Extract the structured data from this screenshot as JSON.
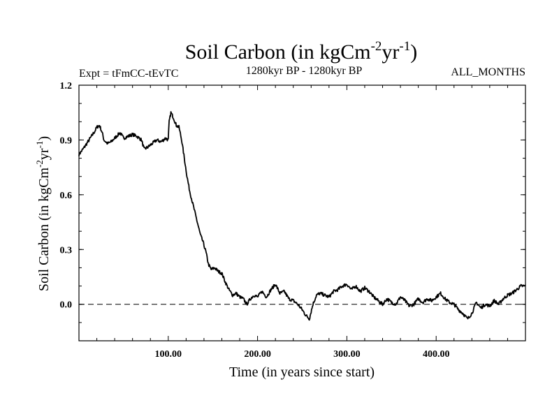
{
  "chart_data": {
    "type": "line",
    "title": {
      "main": "Soil Carbon (in kgCm",
      "sup1": "-2",
      "mid": "yr",
      "sup2": "-1",
      "end": ")"
    },
    "subtitle_left": "Expt = tFmCC-tEvTC",
    "subtitle_center": "1280kyr BP - 1280kyr BP",
    "subtitle_right": "ALL_MONTHS",
    "xlabel": "Time (in years since start)",
    "ylabel": {
      "main": "Soil Carbon (in kgCm",
      "sup1": "-2",
      "mid": "yr",
      "sup2": "-1",
      "end": ")"
    },
    "xlim": [
      0,
      500
    ],
    "ylim": [
      -0.2,
      1.2
    ],
    "x_ticks": [
      100,
      200,
      300,
      400
    ],
    "x_tick_labels": [
      "100.00",
      "200.00",
      "300.00",
      "400.00"
    ],
    "y_ticks": [
      0.0,
      0.3,
      0.6,
      0.9,
      1.2
    ],
    "y_tick_labels": [
      "0.0",
      "0.3",
      "0.6",
      "0.9",
      "1.2"
    ],
    "reference_line": 0.0,
    "series": [
      {
        "name": "Soil Carbon",
        "x": [
          0,
          3,
          6,
          10,
          14,
          18,
          20,
          23,
          26,
          28,
          32,
          36,
          40,
          44,
          46,
          50,
          55,
          60,
          65,
          70,
          73,
          77,
          82,
          87,
          92,
          97,
          100,
          101,
          103,
          106,
          109,
          112,
          115,
          118,
          121,
          124,
          127,
          130,
          133,
          136,
          139,
          142,
          145,
          148,
          152,
          156,
          160,
          164,
          168,
          172,
          176,
          180,
          184,
          188,
          192,
          196,
          200,
          205,
          210,
          215,
          220,
          225,
          230,
          235,
          240,
          245,
          250,
          254,
          258,
          262,
          266,
          270,
          275,
          280,
          285,
          290,
          295,
          300,
          305,
          310,
          315,
          320,
          325,
          330,
          335,
          340,
          345,
          350,
          355,
          360,
          365,
          370,
          375,
          380,
          385,
          390,
          395,
          400,
          405,
          410,
          415,
          420,
          425,
          430,
          435,
          440,
          445,
          450,
          455,
          460,
          465,
          470,
          475,
          480,
          485,
          490,
          495,
          500
        ],
        "values": [
          0.82,
          0.84,
          0.86,
          0.89,
          0.92,
          0.95,
          0.97,
          0.98,
          0.94,
          0.9,
          0.88,
          0.89,
          0.91,
          0.93,
          0.94,
          0.91,
          0.92,
          0.93,
          0.92,
          0.9,
          0.85,
          0.86,
          0.88,
          0.9,
          0.89,
          0.91,
          0.9,
          1.0,
          1.05,
          1.02,
          0.98,
          0.97,
          0.9,
          0.8,
          0.7,
          0.62,
          0.56,
          0.5,
          0.44,
          0.38,
          0.34,
          0.29,
          0.22,
          0.19,
          0.2,
          0.18,
          0.17,
          0.12,
          0.08,
          0.05,
          0.06,
          0.04,
          0.03,
          0.0,
          0.03,
          0.05,
          0.04,
          0.07,
          0.04,
          0.08,
          0.11,
          0.06,
          0.07,
          0.03,
          0.02,
          0.0,
          -0.03,
          -0.06,
          -0.08,
          0.0,
          0.05,
          0.06,
          0.05,
          0.04,
          0.07,
          0.08,
          0.1,
          0.11,
          0.08,
          0.1,
          0.07,
          0.09,
          0.07,
          0.04,
          0.02,
          0.0,
          0.03,
          0.01,
          0.0,
          0.04,
          0.02,
          -0.01,
          0.0,
          0.03,
          0.01,
          0.03,
          0.02,
          0.04,
          0.06,
          0.03,
          0.01,
          0.0,
          -0.03,
          -0.05,
          -0.08,
          -0.05,
          0.01,
          -0.02,
          0.0,
          -0.01,
          0.02,
          0.0,
          0.03,
          0.05,
          0.06,
          0.08,
          0.1,
          0.1
        ]
      }
    ]
  }
}
